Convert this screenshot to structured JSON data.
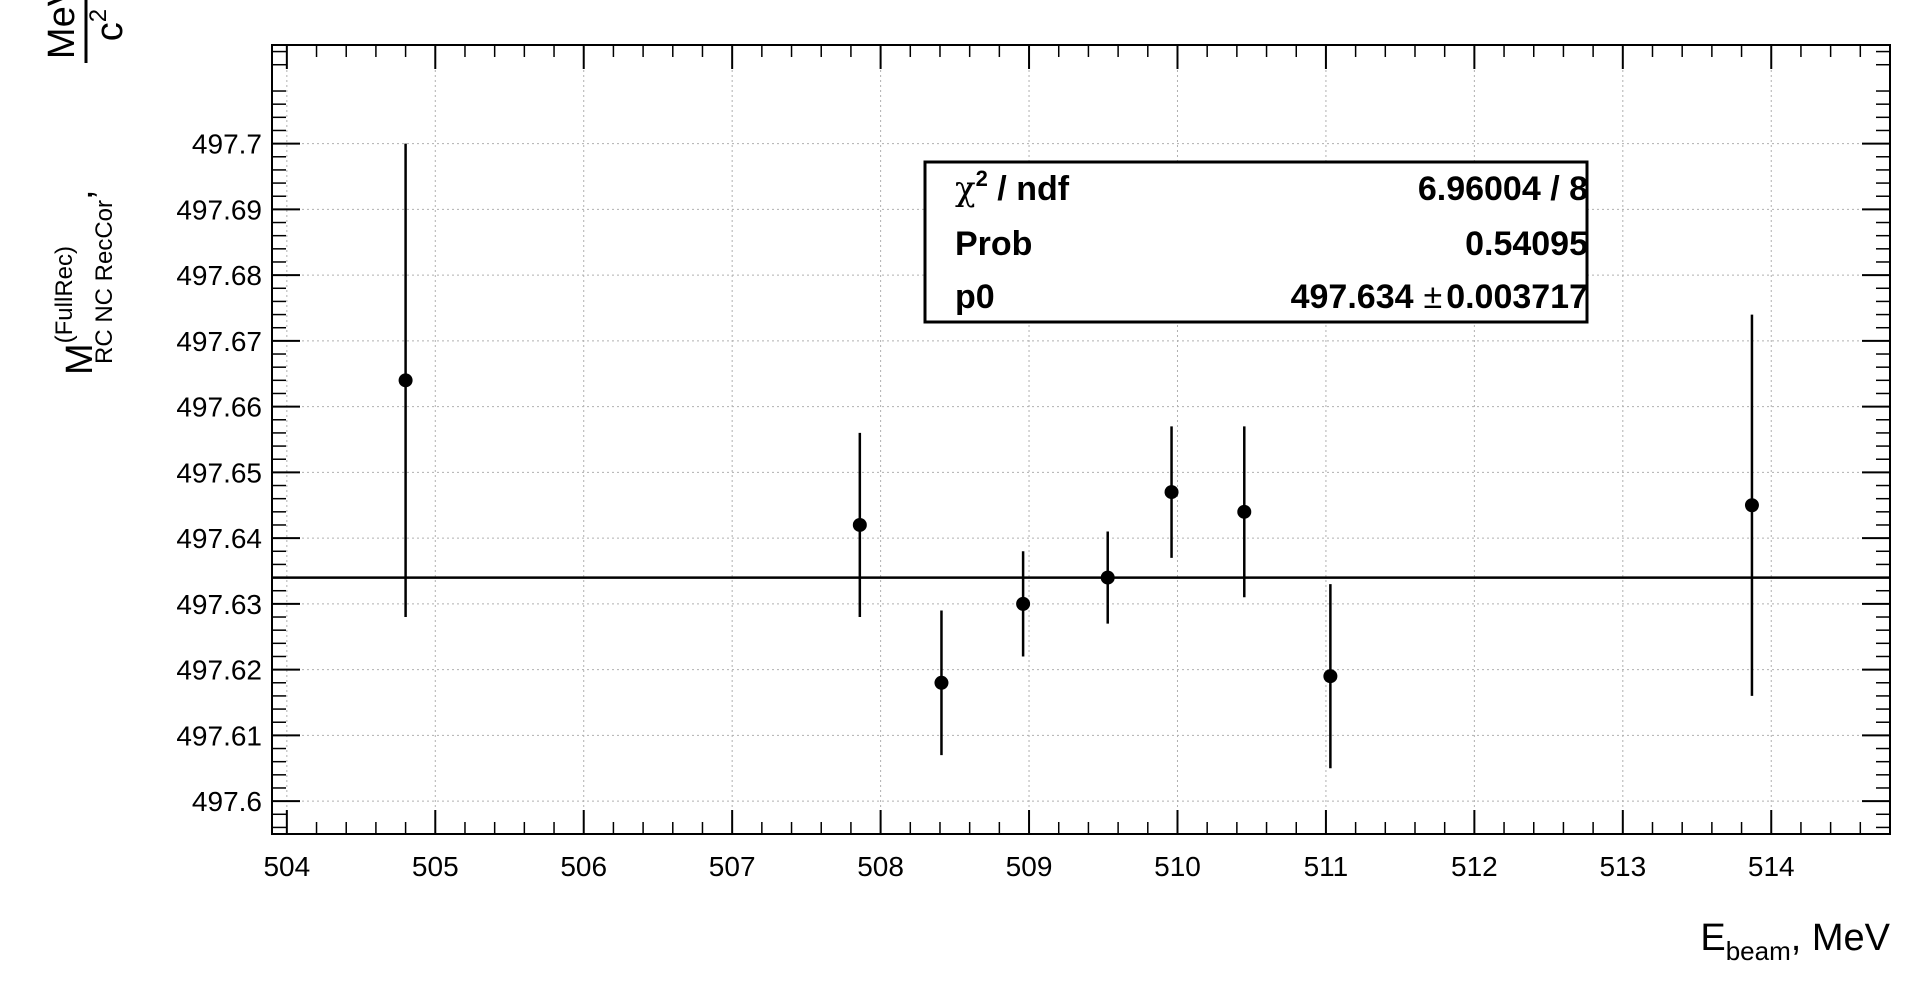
{
  "chart_data": {
    "type": "scatter",
    "x": [
      504.8,
      507.86,
      508.41,
      508.96,
      509.53,
      509.96,
      510.45,
      511.03,
      513.87
    ],
    "y": [
      497.664,
      497.642,
      497.618,
      497.63,
      497.634,
      497.647,
      497.644,
      497.619,
      497.645
    ],
    "yerr": [
      0.036,
      0.014,
      0.011,
      0.008,
      0.007,
      0.01,
      0.013,
      0.014,
      0.029
    ],
    "fit": {
      "value": 497.634
    },
    "xlim": [
      503.9,
      514.8
    ],
    "ylim": [
      497.595,
      497.715
    ],
    "xticks": [
      "504",
      "505",
      "506",
      "507",
      "508",
      "509",
      "510",
      "511",
      "512",
      "513",
      "514"
    ],
    "yticks": [
      "497.6",
      "497.61",
      "497.62",
      "497.63",
      "497.64",
      "497.65",
      "497.66",
      "497.67",
      "497.68",
      "497.69",
      "497.7"
    ],
    "grid": true,
    "xlabel": {
      "main": "E",
      "sub": "beam",
      "rest": ", MeV"
    },
    "ylabel": {
      "main": "M",
      "sup": "(FullRec)",
      "sub": "RC NC RecCor",
      "sep": ",",
      "unit_num": "MeV",
      "unit_den": "c",
      "unit_den_sup": "2"
    },
    "stats": {
      "rows": [
        {
          "label": "χ",
          "label_sup": "2",
          "label_rest": " / ndf",
          "value": "6.96004 / 8"
        },
        {
          "label": "Prob",
          "value": "0.54095"
        },
        {
          "label": "p0",
          "value": "497.634",
          "pm": "±",
          "err": "0.003717"
        }
      ]
    }
  }
}
